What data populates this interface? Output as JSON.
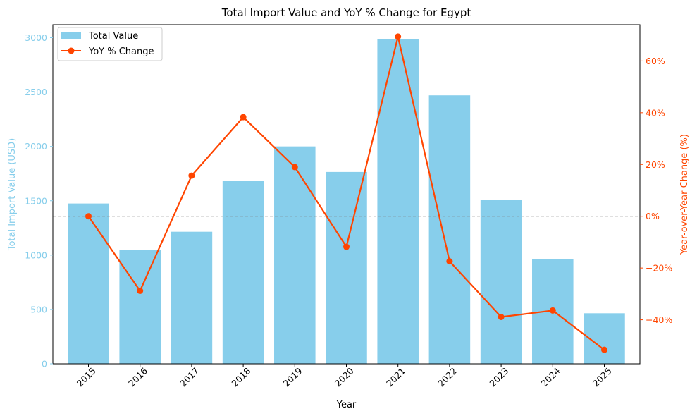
{
  "chart_data": {
    "type": "bar",
    "title": "Total Import Value and YoY % Change for Egypt",
    "xlabel": "Year",
    "ylabel": "Total Import Value (USD)",
    "y2label": "Year-over-Year Change (%)",
    "categories": [
      "2015",
      "2016",
      "2017",
      "2018",
      "2019",
      "2020",
      "2021",
      "2022",
      "2023",
      "2024",
      "2025"
    ],
    "series": [
      {
        "name": "Total Value",
        "type": "bar",
        "axis": "left",
        "color": "#87ceeb",
        "values": [
          1475,
          1050,
          1215,
          1680,
          2000,
          1765,
          2990,
          2470,
          1510,
          960,
          465
        ]
      },
      {
        "name": "YoY % Change",
        "type": "line",
        "axis": "right",
        "color": "#ff4500",
        "values": [
          0,
          -28.8,
          15.7,
          38.3,
          19.0,
          -11.8,
          69.4,
          -17.4,
          -38.9,
          -36.4,
          -51.6
        ]
      }
    ],
    "ylim": [
      0,
      3120
    ],
    "y2lim": [
      -57,
      74
    ],
    "yticks": [
      "0",
      "500",
      "1000",
      "1500",
      "2000",
      "2500",
      "3000"
    ],
    "y2ticks": [
      "−40%",
      "−20%",
      "0%",
      "20%",
      "40%",
      "60%"
    ],
    "zero_reference_line": true,
    "legend_position": "upper-left",
    "left_axis_color": "#87ceeb",
    "right_axis_color": "#ff4500"
  }
}
